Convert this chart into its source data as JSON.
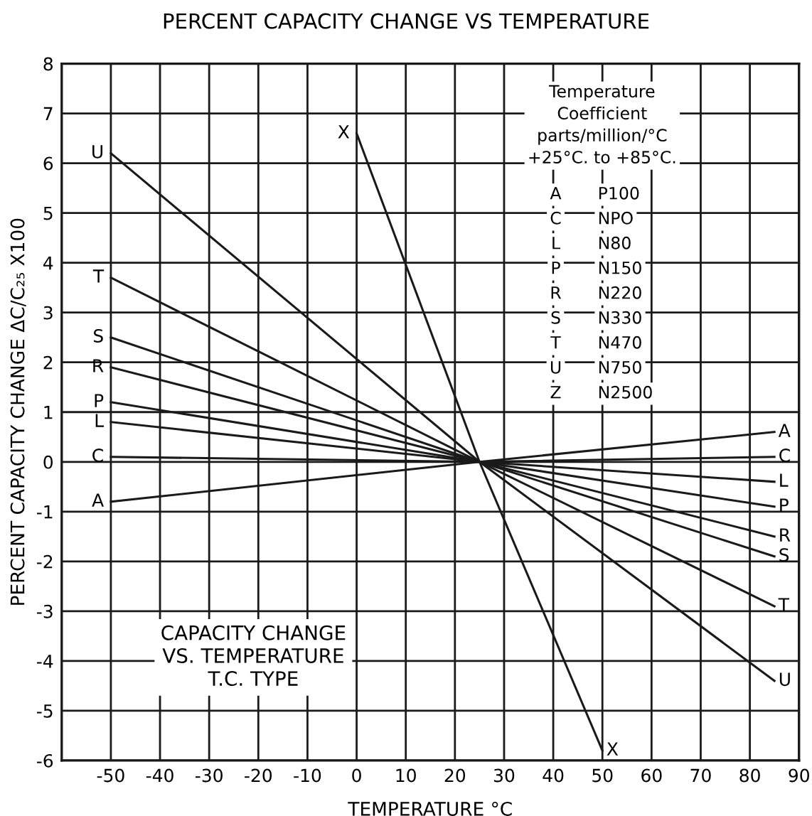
{
  "chart_data": {
    "type": "line",
    "title": "PERCENT CAPACITY CHANGE VS TEMPERATURE",
    "xlabel": "TEMPERATURE °C",
    "ylabel": "PERCENT CAPACITY CHANGE ΔC/C₂₅ X100",
    "xlim": [
      -60,
      90
    ],
    "xticks": [
      -50,
      -40,
      -30,
      -20,
      -10,
      0,
      10,
      20,
      30,
      40,
      50,
      60,
      70,
      80,
      90
    ],
    "ylim": [
      -6,
      8
    ],
    "yticks": [
      -6,
      -5,
      -4,
      -3,
      -2,
      -1,
      0,
      1,
      2,
      3,
      4,
      5,
      6,
      7,
      8
    ],
    "grid": true,
    "line_style": "solid",
    "series": [
      {
        "name": "U",
        "color": "#1a1a1a",
        "x": [
          -50,
          25,
          85
        ],
        "values": [
          6.2,
          0,
          -4.4
        ]
      },
      {
        "name": "T",
        "color": "#1a1a1a",
        "x": [
          -50,
          25,
          85
        ],
        "values": [
          3.7,
          0,
          -2.9
        ]
      },
      {
        "name": "S",
        "color": "#1a1a1a",
        "x": [
          -50,
          25,
          85
        ],
        "values": [
          2.5,
          0,
          -1.9
        ]
      },
      {
        "name": "R",
        "color": "#1a1a1a",
        "x": [
          -50,
          25,
          85
        ],
        "values": [
          1.9,
          0,
          -1.5
        ]
      },
      {
        "name": "P",
        "color": "#1a1a1a",
        "x": [
          -50,
          25,
          85
        ],
        "values": [
          1.2,
          0,
          -0.9
        ]
      },
      {
        "name": "L",
        "color": "#1a1a1a",
        "x": [
          -50,
          25,
          85
        ],
        "values": [
          0.8,
          0,
          -0.4
        ]
      },
      {
        "name": "C",
        "color": "#1a1a1a",
        "x": [
          -50,
          25,
          85
        ],
        "values": [
          0.1,
          0,
          0.1
        ]
      },
      {
        "name": "A",
        "color": "#1a1a1a",
        "x": [
          -50,
          25,
          85
        ],
        "values": [
          -0.8,
          0,
          0.6
        ]
      },
      {
        "name": "X",
        "color": "#1a1a1a",
        "x": [
          0,
          25,
          50
        ],
        "values": [
          6.6,
          0,
          -5.8
        ]
      }
    ],
    "annotations": [
      "Temperature\nCoefficient\nparts/million/°C\n+25°C. to +85°C.",
      "A P100",
      "C NPO",
      "L N80",
      "P N150",
      "R N220",
      "S N330",
      "T N470",
      "U N750",
      "Z N2500",
      "CAPACITY CHANGE\nVS. TEMPERATURE\nT.C. TYPE"
    ]
  }
}
